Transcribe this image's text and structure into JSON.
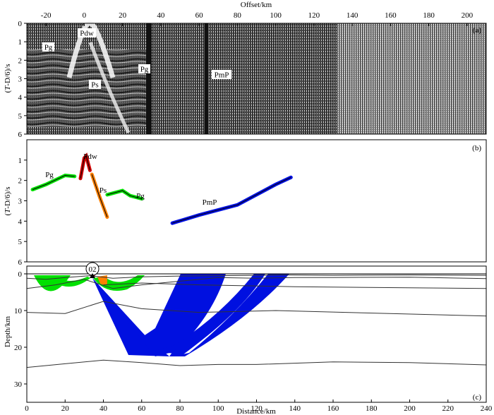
{
  "panel_a": {
    "tag": "(a)",
    "x_title": "Offset/km",
    "y_title_prefix": "(",
    "y_title_var": "T",
    "y_title_suffix": "-D/6)/s",
    "x_ticks": [
      "-20",
      "0",
      "20",
      "40",
      "60",
      "80",
      "100",
      "120",
      "140",
      "160",
      "180",
      "200"
    ],
    "y_ticks": [
      "0",
      "1",
      "2",
      "3",
      "4",
      "5",
      "6"
    ],
    "phases": [
      "Pdw",
      "Pg",
      "Pg",
      "Ps",
      "PmP"
    ]
  },
  "panel_b": {
    "tag": "(b)",
    "y_title_prefix": "(",
    "y_title_var": "T",
    "y_title_suffix": "-D/6)/s",
    "y_ticks": [
      "1",
      "2",
      "3",
      "4",
      "5",
      "6"
    ],
    "phases": [
      "Pdw",
      "Pg",
      "Ps",
      "Pg",
      "PmP"
    ]
  },
  "panel_c": {
    "tag": "(c)",
    "x_title": "Distance/km",
    "y_title": "Depth/km",
    "x_ticks": [
      "0",
      "20",
      "40",
      "60",
      "80",
      "100",
      "120",
      "140",
      "160",
      "180",
      "200",
      "220",
      "240"
    ],
    "y_ticks": [
      "0",
      "10",
      "20",
      "30"
    ],
    "station": "02"
  },
  "colors": {
    "pg": "#00e000",
    "ps": "#ff8000",
    "pdw": "#d00000",
    "pmp": "#0010e0"
  },
  "chart_data": [
    {
      "type": "scatter",
      "x_range": [
        -30,
        210
      ],
      "y_range": [
        0,
        6
      ]
    },
    {
      "type": "line",
      "x_range": [
        -30,
        210
      ],
      "y_range": [
        0,
        6
      ],
      "series": [
        {
          "name": "Pg",
          "x": [
            -27,
            -20,
            -10,
            -5
          ],
          "y": [
            2.45,
            2.2,
            1.75,
            1.8
          ]
        },
        {
          "name": "Pdw",
          "x": [
            -2,
            0,
            1,
            3
          ],
          "y": [
            1.9,
            0.9,
            0.8,
            1.5
          ]
        },
        {
          "name": "Ps",
          "x": [
            4,
            8,
            12
          ],
          "y": [
            1.7,
            2.8,
            3.8
          ]
        },
        {
          "name": "Pg",
          "x": [
            12,
            20,
            24,
            30
          ],
          "y": [
            2.7,
            2.5,
            2.75,
            2.9
          ]
        },
        {
          "name": "PmP",
          "x": [
            46,
            60,
            80,
            100,
            108
          ],
          "y": [
            4.1,
            3.7,
            3.2,
            2.2,
            1.85
          ]
        }
      ]
    },
    {
      "type": "line",
      "x_range": [
        0,
        240
      ],
      "y_range": [
        0,
        35
      ],
      "boundaries": [
        {
          "x": [
            0,
            10,
            20,
            33,
            45,
            60,
            80,
            100,
            120,
            135,
            160,
            200,
            240
          ],
          "y": [
            1.2,
            1.5,
            1.0,
            0.5,
            1.2,
            0.8,
            0.6,
            0.5,
            0.4,
            0.3,
            0.4,
            0.3,
            0.4
          ]
        },
        {
          "x": [
            0,
            15,
            30,
            45,
            60,
            80,
            100,
            120,
            140,
            160,
            200,
            240
          ],
          "y": [
            4,
            3,
            1.5,
            4,
            3,
            2,
            1,
            1.2,
            1.0,
            1.0,
            0.9,
            1.3
          ]
        },
        {
          "x": [
            40,
            60,
            90,
            140,
            240
          ],
          "y": [
            3,
            2.5,
            3,
            3.5,
            4
          ]
        },
        {
          "x": [
            0,
            20,
            40,
            60,
            90,
            130,
            240
          ],
          "y": [
            10.5,
            10.8,
            7.5,
            9.5,
            10.5,
            10,
            11.5
          ]
        },
        {
          "x": [
            0,
            20,
            40,
            60,
            80,
            100,
            120,
            160,
            200,
            240
          ],
          "y": [
            25.5,
            24.5,
            23.5,
            24.2,
            25,
            24.7,
            24.7,
            24,
            24.2,
            24.8
          ]
        }
      ]
    }
  ]
}
